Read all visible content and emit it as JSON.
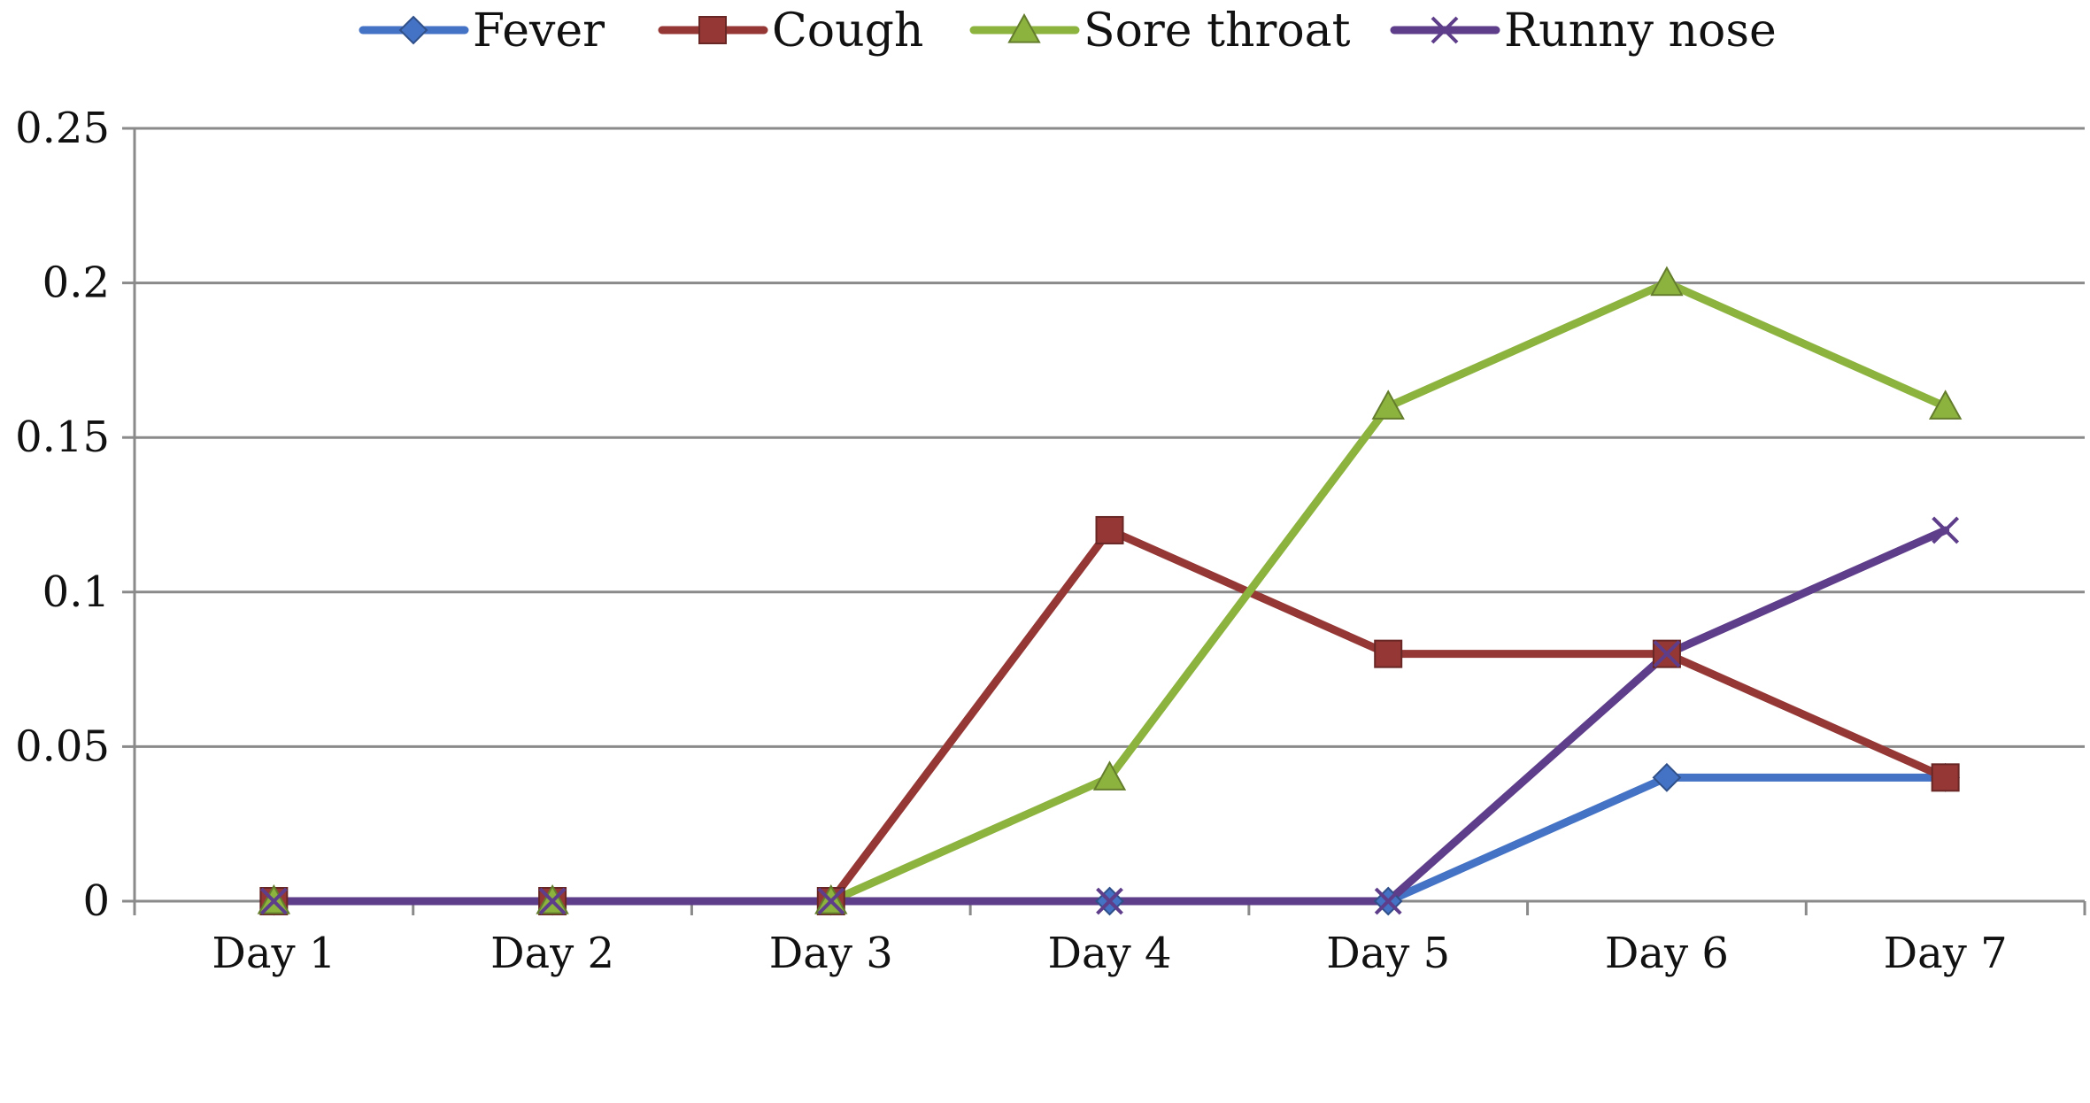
{
  "chart_data": {
    "type": "line",
    "title": "",
    "xlabel": "",
    "ylabel": "",
    "categories": [
      "Day 1",
      "Day 2",
      "Day 3",
      "Day 4",
      "Day 5",
      "Day 6",
      "Day 7"
    ],
    "ylim": [
      0,
      0.25
    ],
    "yticks": [
      0,
      0.05,
      0.1,
      0.15,
      0.2,
      0.25
    ],
    "ytick_labels": [
      "0",
      "0.05",
      "0.1",
      "0.15",
      "0.2",
      "0.25"
    ],
    "grid": true,
    "legend_position": "top",
    "series": [
      {
        "name": "Fever",
        "color": "#4472C4",
        "marker": "diamond",
        "values": [
          0,
          0,
          0,
          0,
          0,
          0.04,
          0.04
        ]
      },
      {
        "name": "Cough",
        "color": "#953735",
        "marker": "square",
        "values": [
          0,
          0,
          0,
          0.12,
          0.08,
          0.08,
          0.04
        ]
      },
      {
        "name": "Sore throat",
        "color": "#8DB33F",
        "marker": "triangle",
        "values": [
          0,
          0,
          0,
          0.04,
          0.16,
          0.2,
          0.16
        ]
      },
      {
        "name": "Runny nose",
        "color": "#5E3D8A",
        "marker": "x",
        "values": [
          0,
          0,
          0,
          0,
          0,
          0.08,
          0.12
        ]
      }
    ]
  }
}
